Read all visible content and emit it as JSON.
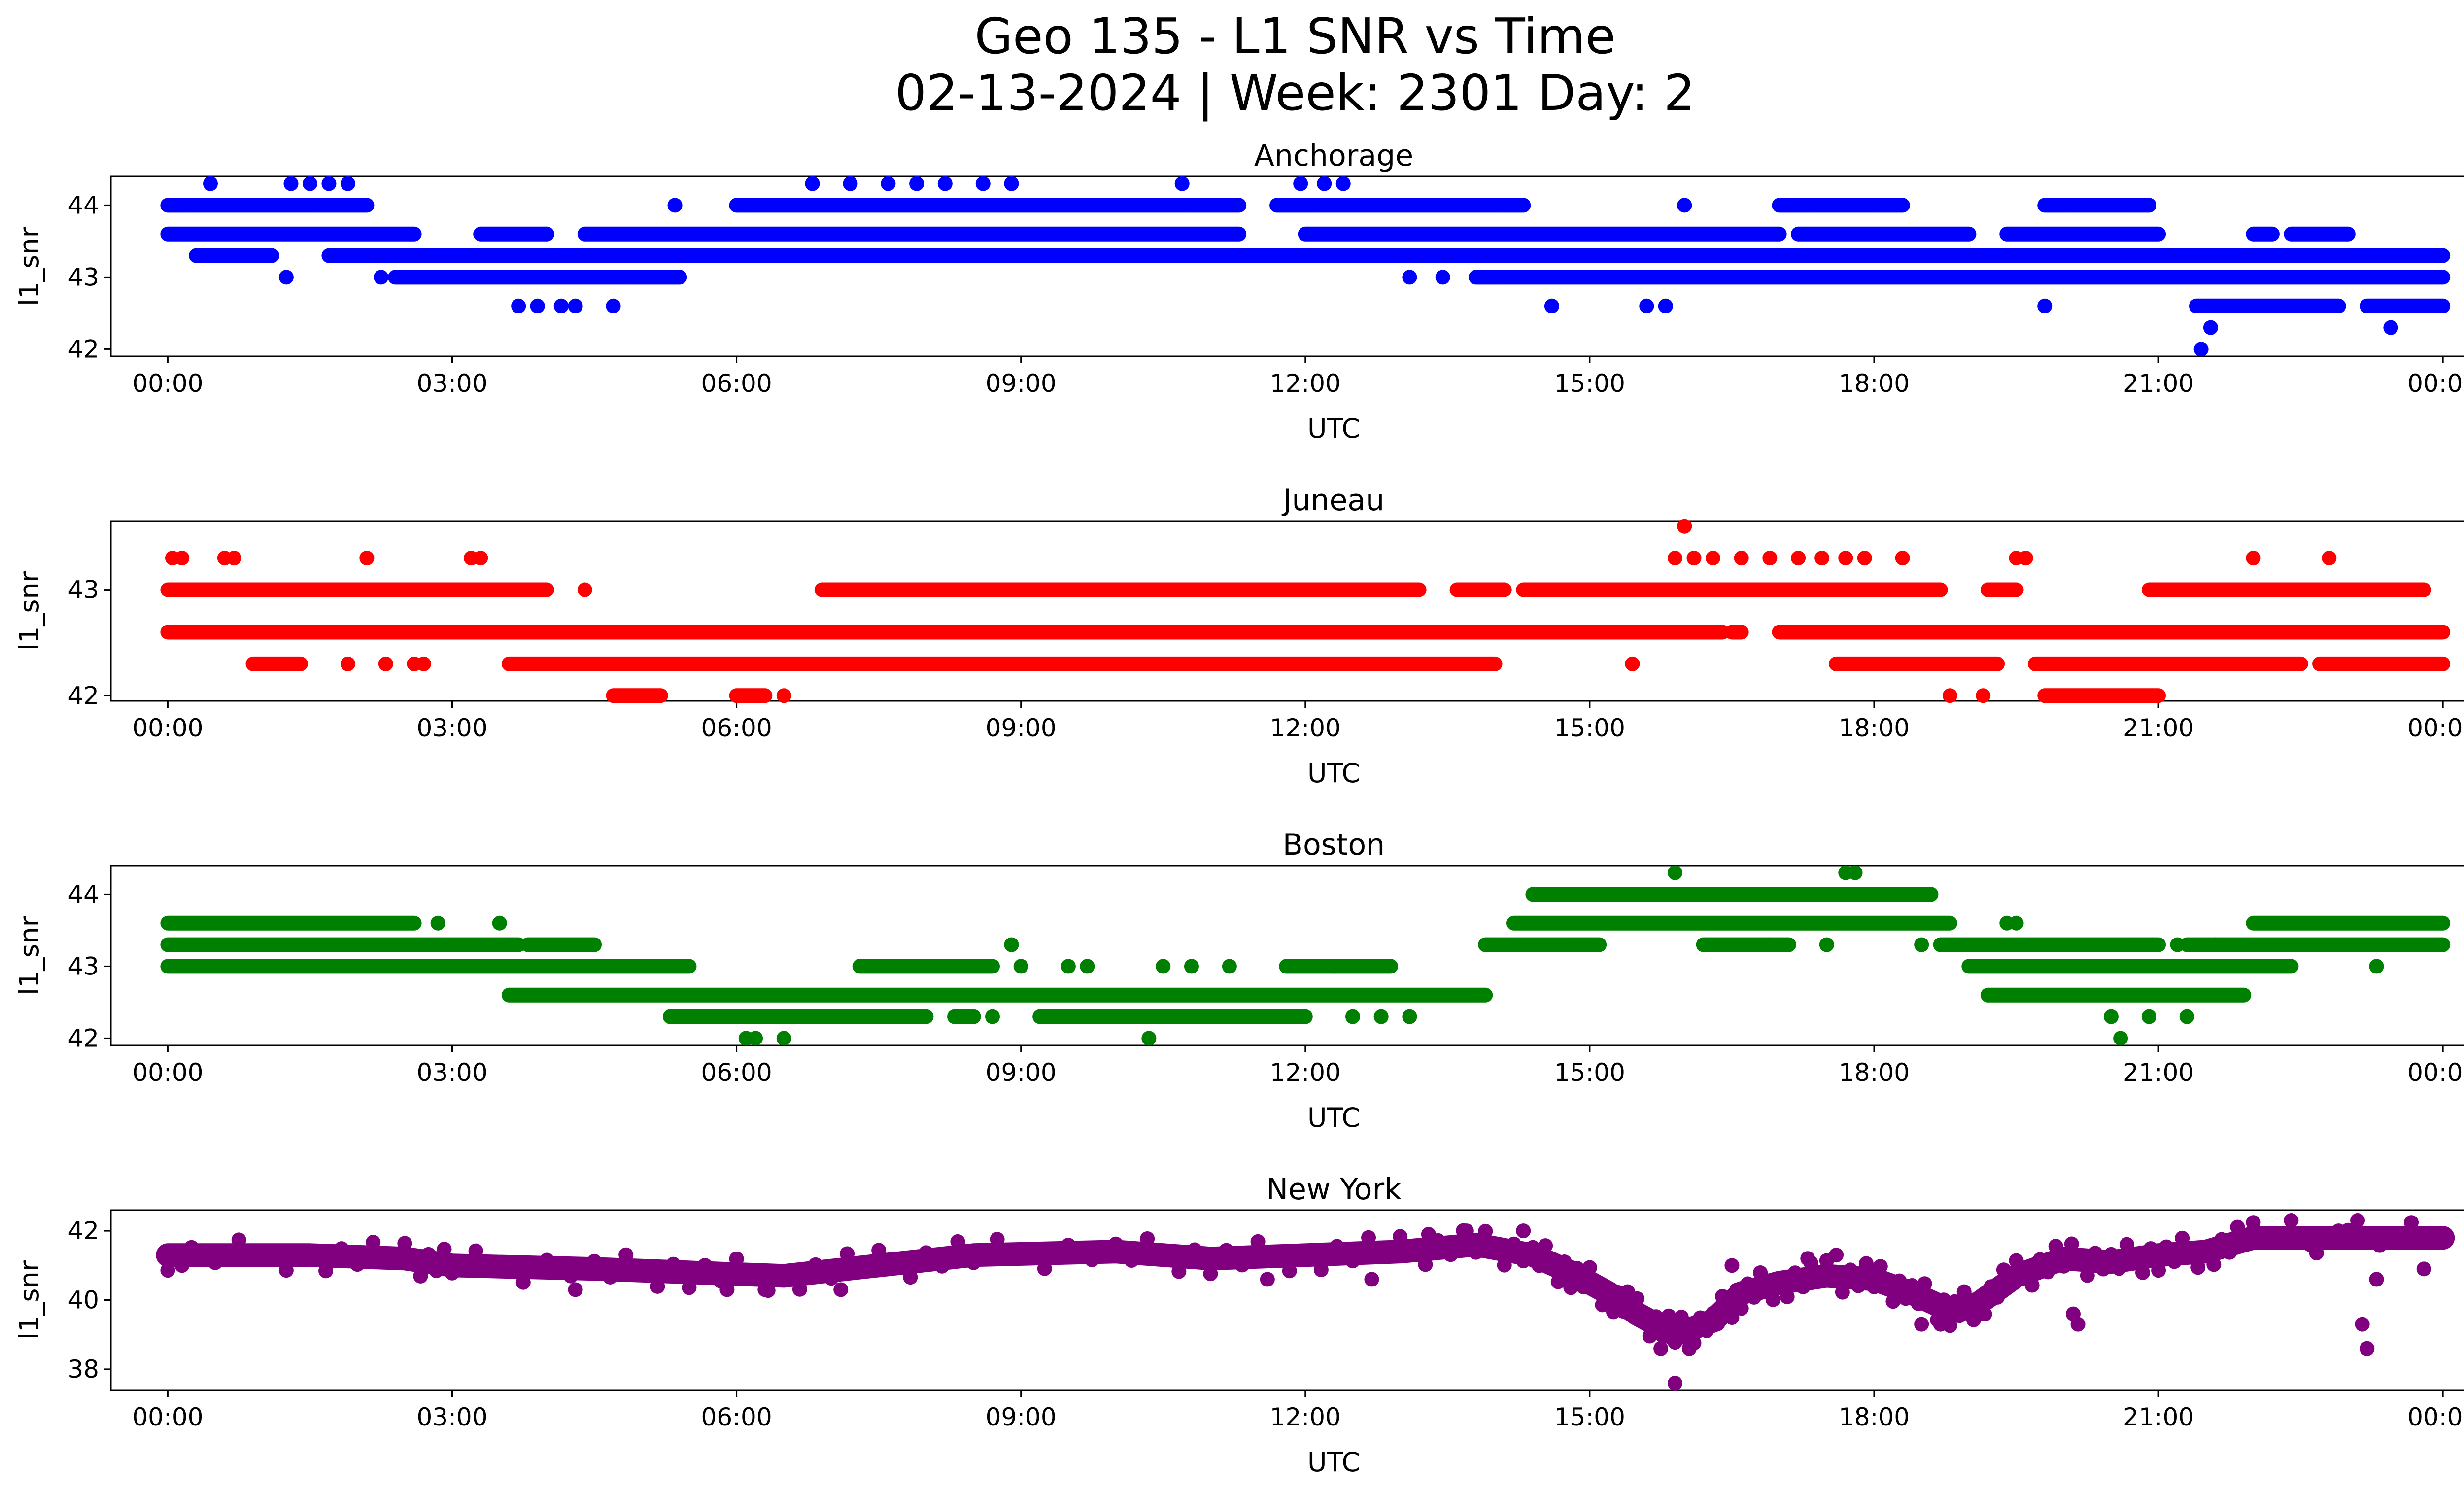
{
  "figure": {
    "title_line1": "Geo 135 - L1 SNR vs Time",
    "title_line2": "02-13-2024 | Week: 2301 Day: 2"
  },
  "chart_data": [
    {
      "type": "scatter",
      "title": "Anchorage",
      "xlabel": "UTC",
      "ylabel": "l1_snr",
      "color": "#0000ff",
      "xlim": [
        -0.6,
        25.2
      ],
      "ylim": [
        41.9,
        44.4
      ],
      "xticks": [
        "00:00",
        "03:00",
        "06:00",
        "09:00",
        "12:00",
        "15:00",
        "18:00",
        "21:00",
        "00:00"
      ],
      "yticks": [
        42,
        43,
        44
      ],
      "bands": [
        {
          "y": 44.0,
          "segments": [
            [
              0,
              2.1
            ],
            [
              5.35,
              5.35
            ],
            [
              6.0,
              11.3
            ],
            [
              11.7,
              14.3
            ],
            [
              16.0,
              16.0
            ],
            [
              17.0,
              18.3
            ],
            [
              19.8,
              20.9
            ]
          ]
        },
        {
          "y": 43.6,
          "segments": [
            [
              0,
              2.6
            ],
            [
              3.3,
              4.0
            ],
            [
              4.4,
              11.3
            ],
            [
              12.0,
              17.0
            ],
            [
              17.2,
              19.0
            ],
            [
              19.4,
              21.0
            ],
            [
              22.0,
              22.2
            ],
            [
              22.4,
              23.0
            ]
          ]
        },
        {
          "y": 43.3,
          "segments": [
            [
              0.3,
              1.1
            ],
            [
              1.7,
              24.0
            ]
          ]
        },
        {
          "y": 43.0,
          "segments": [
            [
              2.4,
              5.4
            ],
            [
              13.8,
              24.0
            ]
          ]
        },
        {
          "y": 42.6,
          "segments": [
            [
              21.4,
              22.9
            ],
            [
              23.2,
              24.0
            ]
          ]
        }
      ],
      "points": [
        {
          "x": 0.45,
          "y": 44.3
        },
        {
          "x": 1.3,
          "y": 44.3
        },
        {
          "x": 1.5,
          "y": 44.3
        },
        {
          "x": 1.7,
          "y": 44.3
        },
        {
          "x": 1.9,
          "y": 44.3
        },
        {
          "x": 6.8,
          "y": 44.3
        },
        {
          "x": 7.2,
          "y": 44.3
        },
        {
          "x": 7.6,
          "y": 44.3
        },
        {
          "x": 7.9,
          "y": 44.3
        },
        {
          "x": 8.2,
          "y": 44.3
        },
        {
          "x": 8.6,
          "y": 44.3
        },
        {
          "x": 8.9,
          "y": 44.3
        },
        {
          "x": 10.7,
          "y": 44.3
        },
        {
          "x": 11.95,
          "y": 44.3
        },
        {
          "x": 12.2,
          "y": 44.3
        },
        {
          "x": 12.4,
          "y": 44.3
        },
        {
          "x": 1.25,
          "y": 43.0
        },
        {
          "x": 2.25,
          "y": 43.0
        },
        {
          "x": 13.1,
          "y": 43.0
        },
        {
          "x": 13.45,
          "y": 43.0
        },
        {
          "x": 3.7,
          "y": 42.6
        },
        {
          "x": 3.9,
          "y": 42.6
        },
        {
          "x": 4.15,
          "y": 42.6
        },
        {
          "x": 4.3,
          "y": 42.6
        },
        {
          "x": 4.7,
          "y": 42.6
        },
        {
          "x": 14.6,
          "y": 42.6
        },
        {
          "x": 15.6,
          "y": 42.6
        },
        {
          "x": 15.8,
          "y": 42.6
        },
        {
          "x": 19.8,
          "y": 42.6
        },
        {
          "x": 21.55,
          "y": 42.3
        },
        {
          "x": 23.45,
          "y": 42.3
        },
        {
          "x": 21.45,
          "y": 42.0
        }
      ]
    },
    {
      "type": "scatter",
      "title": "Juneau",
      "xlabel": "UTC",
      "ylabel": "l1_snr",
      "color": "#ff0000",
      "xlim": [
        -0.6,
        25.2
      ],
      "ylim": [
        41.95,
        43.65
      ],
      "xticks": [
        "00:00",
        "03:00",
        "06:00",
        "09:00",
        "12:00",
        "15:00",
        "18:00",
        "21:00",
        "00:00"
      ],
      "yticks": [
        42,
        43
      ],
      "bands": [
        {
          "y": 43.0,
          "segments": [
            [
              0,
              4.0
            ],
            [
              6.9,
              13.2
            ],
            [
              13.6,
              14.1
            ],
            [
              14.3,
              18.7
            ],
            [
              19.2,
              19.5
            ],
            [
              20.9,
              23.8
            ]
          ]
        },
        {
          "y": 42.6,
          "segments": [
            [
              0,
              16.4
            ],
            [
              16.5,
              16.6
            ],
            [
              17.0,
              24.0
            ]
          ]
        },
        {
          "y": 42.3,
          "segments": [
            [
              0.9,
              1.4
            ],
            [
              3.6,
              14.0
            ],
            [
              17.6,
              19.3
            ],
            [
              19.7,
              22.5
            ],
            [
              22.7,
              24.0
            ]
          ]
        },
        {
          "y": 42.0,
          "segments": [
            [
              4.7,
              5.2
            ],
            [
              6.0,
              6.3
            ],
            [
              19.8,
              21.0
            ]
          ]
        }
      ],
      "points": [
        {
          "x": 0.05,
          "y": 43.3
        },
        {
          "x": 0.15,
          "y": 43.3
        },
        {
          "x": 0.6,
          "y": 43.3
        },
        {
          "x": 0.7,
          "y": 43.3
        },
        {
          "x": 2.1,
          "y": 43.3
        },
        {
          "x": 3.2,
          "y": 43.3
        },
        {
          "x": 3.3,
          "y": 43.3
        },
        {
          "x": 19.5,
          "y": 43.3
        },
        {
          "x": 19.6,
          "y": 43.3
        },
        {
          "x": 22.0,
          "y": 43.3
        },
        {
          "x": 22.8,
          "y": 43.3
        },
        {
          "x": 16.0,
          "y": 43.6
        },
        {
          "x": 16.6,
          "y": 43.3
        },
        {
          "x": 16.9,
          "y": 43.3
        },
        {
          "x": 17.2,
          "y": 43.3
        },
        {
          "x": 17.45,
          "y": 43.3
        },
        {
          "x": 17.7,
          "y": 43.3
        },
        {
          "x": 17.9,
          "y": 43.3
        },
        {
          "x": 18.3,
          "y": 43.3
        },
        {
          "x": 15.9,
          "y": 43.3
        },
        {
          "x": 16.1,
          "y": 43.3
        },
        {
          "x": 16.3,
          "y": 43.3
        },
        {
          "x": 4.4,
          "y": 43.0
        },
        {
          "x": 18.8,
          "y": 42.0
        },
        {
          "x": 19.15,
          "y": 42.0
        },
        {
          "x": 6.5,
          "y": 42.0
        },
        {
          "x": 1.9,
          "y": 42.3
        },
        {
          "x": 2.3,
          "y": 42.3
        },
        {
          "x": 2.6,
          "y": 42.3
        },
        {
          "x": 2.7,
          "y": 42.3
        },
        {
          "x": 15.45,
          "y": 42.3
        }
      ]
    },
    {
      "type": "scatter",
      "title": "Boston",
      "xlabel": "UTC",
      "ylabel": "l1_snr",
      "color": "#008000",
      "xlim": [
        -0.6,
        25.2
      ],
      "ylim": [
        41.9,
        44.4
      ],
      "xticks": [
        "00:00",
        "03:00",
        "06:00",
        "09:00",
        "12:00",
        "15:00",
        "18:00",
        "21:00",
        "00:00"
      ],
      "yticks": [
        42,
        43,
        44
      ],
      "bands": [
        {
          "y": 44.0,
          "segments": [
            [
              14.4,
              18.6
            ]
          ]
        },
        {
          "y": 43.6,
          "segments": [
            [
              0,
              2.6
            ],
            [
              14.2,
              18.8
            ],
            [
              22.0,
              24.0
            ]
          ]
        },
        {
          "y": 43.3,
          "segments": [
            [
              0,
              3.7
            ],
            [
              3.8,
              4.5
            ],
            [
              13.9,
              15.1
            ],
            [
              16.2,
              17.1
            ],
            [
              18.7,
              21.0
            ],
            [
              21.3,
              24.0
            ]
          ]
        },
        {
          "y": 43.0,
          "segments": [
            [
              0,
              5.5
            ],
            [
              7.3,
              8.7
            ],
            [
              11.8,
              12.3
            ],
            [
              12.3,
              12.9
            ],
            [
              19.0,
              22.4
            ]
          ]
        },
        {
          "y": 42.6,
          "segments": [
            [
              3.6,
              13.9
            ],
            [
              19.2,
              21.9
            ]
          ]
        },
        {
          "y": 42.3,
          "segments": [
            [
              5.3,
              8.0
            ],
            [
              8.3,
              8.5
            ],
            [
              9.2,
              12.0
            ]
          ]
        }
      ],
      "points": [
        {
          "x": 3.5,
          "y": 43.6
        },
        {
          "x": 2.85,
          "y": 43.6
        },
        {
          "x": 15.9,
          "y": 44.3
        },
        {
          "x": 17.7,
          "y": 44.3
        },
        {
          "x": 17.8,
          "y": 44.3
        },
        {
          "x": 19.4,
          "y": 43.6
        },
        {
          "x": 19.5,
          "y": 43.6
        },
        {
          "x": 8.9,
          "y": 43.3
        },
        {
          "x": 16.9,
          "y": 43.3
        },
        {
          "x": 17.5,
          "y": 43.3
        },
        {
          "x": 18.5,
          "y": 43.3
        },
        {
          "x": 9.0,
          "y": 43.0
        },
        {
          "x": 9.5,
          "y": 43.0
        },
        {
          "x": 9.7,
          "y": 43.0
        },
        {
          "x": 10.5,
          "y": 43.0
        },
        {
          "x": 10.8,
          "y": 43.0
        },
        {
          "x": 11.2,
          "y": 43.0
        },
        {
          "x": 23.3,
          "y": 43.0
        },
        {
          "x": 8.7,
          "y": 42.3
        },
        {
          "x": 9.4,
          "y": 42.3
        },
        {
          "x": 12.5,
          "y": 42.3
        },
        {
          "x": 12.8,
          "y": 42.3
        },
        {
          "x": 13.1,
          "y": 42.3
        },
        {
          "x": 20.5,
          "y": 42.3
        },
        {
          "x": 20.9,
          "y": 42.3
        },
        {
          "x": 21.3,
          "y": 42.3
        },
        {
          "x": 6.1,
          "y": 42.0
        },
        {
          "x": 6.2,
          "y": 42.0
        },
        {
          "x": 6.5,
          "y": 42.0
        },
        {
          "x": 10.35,
          "y": 42.0
        },
        {
          "x": 20.6,
          "y": 42.0
        },
        {
          "x": 21.2,
          "y": 43.3
        },
        {
          "x": 21.6,
          "y": 43.3
        }
      ]
    },
    {
      "type": "scatter",
      "title": "New York",
      "xlabel": "UTC",
      "ylabel": "l1_snr",
      "color": "#800080",
      "xlim": [
        -0.6,
        25.2
      ],
      "ylim": [
        37.4,
        42.6
      ],
      "xticks": [
        "00:00",
        "03:00",
        "06:00",
        "09:00",
        "12:00",
        "15:00",
        "18:00",
        "21:00",
        "00:00"
      ],
      "yticks": [
        38,
        40,
        42
      ],
      "trend": [
        {
          "x": 0.0,
          "y": 41.3
        },
        {
          "x": 1.5,
          "y": 41.3
        },
        {
          "x": 2.5,
          "y": 41.2
        },
        {
          "x": 3.0,
          "y": 41.0
        },
        {
          "x": 4.5,
          "y": 40.9
        },
        {
          "x": 5.5,
          "y": 40.8
        },
        {
          "x": 6.5,
          "y": 40.7
        },
        {
          "x": 7.5,
          "y": 41.0
        },
        {
          "x": 8.5,
          "y": 41.3
        },
        {
          "x": 10.0,
          "y": 41.4
        },
        {
          "x": 11.0,
          "y": 41.2
        },
        {
          "x": 12.0,
          "y": 41.3
        },
        {
          "x": 13.0,
          "y": 41.4
        },
        {
          "x": 13.8,
          "y": 41.6
        },
        {
          "x": 14.4,
          "y": 41.3
        },
        {
          "x": 14.8,
          "y": 40.8
        },
        {
          "x": 15.2,
          "y": 40.2
        },
        {
          "x": 15.5,
          "y": 39.6
        },
        {
          "x": 15.9,
          "y": 39.0
        },
        {
          "x": 16.3,
          "y": 39.4
        },
        {
          "x": 16.6,
          "y": 40.2
        },
        {
          "x": 17.0,
          "y": 40.5
        },
        {
          "x": 17.5,
          "y": 40.7
        },
        {
          "x": 18.0,
          "y": 40.6
        },
        {
          "x": 18.4,
          "y": 40.2
        },
        {
          "x": 18.8,
          "y": 39.7
        },
        {
          "x": 19.1,
          "y": 39.9
        },
        {
          "x": 19.5,
          "y": 40.7
        },
        {
          "x": 20.0,
          "y": 41.2
        },
        {
          "x": 20.5,
          "y": 41.1
        },
        {
          "x": 21.0,
          "y": 41.3
        },
        {
          "x": 21.5,
          "y": 41.4
        },
        {
          "x": 22.0,
          "y": 41.8
        },
        {
          "x": 24.0,
          "y": 41.8
        }
      ],
      "points": [
        {
          "x": 0.15,
          "y": 41.0
        },
        {
          "x": 4.3,
          "y": 40.3
        },
        {
          "x": 5.9,
          "y": 40.3
        },
        {
          "x": 6.3,
          "y": 40.3
        },
        {
          "x": 7.1,
          "y": 40.3
        },
        {
          "x": 11.6,
          "y": 40.6
        },
        {
          "x": 12.7,
          "y": 40.6
        },
        {
          "x": 13.3,
          "y": 41.9
        },
        {
          "x": 13.7,
          "y": 42.0
        },
        {
          "x": 14.3,
          "y": 42.0
        },
        {
          "x": 15.9,
          "y": 37.6
        },
        {
          "x": 15.75,
          "y": 38.6
        },
        {
          "x": 16.05,
          "y": 38.6
        },
        {
          "x": 16.5,
          "y": 41.0
        },
        {
          "x": 17.3,
          "y": 41.2
        },
        {
          "x": 17.6,
          "y": 41.3
        },
        {
          "x": 18.5,
          "y": 39.3
        },
        {
          "x": 18.7,
          "y": 39.3
        },
        {
          "x": 19.0,
          "y": 39.6
        },
        {
          "x": 20.1,
          "y": 39.6
        },
        {
          "x": 20.15,
          "y": 39.3
        },
        {
          "x": 22.4,
          "y": 42.3
        },
        {
          "x": 22.9,
          "y": 42.0
        },
        {
          "x": 23.1,
          "y": 42.3
        },
        {
          "x": 23.15,
          "y": 39.3
        },
        {
          "x": 23.2,
          "y": 38.6
        },
        {
          "x": 23.3,
          "y": 40.6
        },
        {
          "x": 23.8,
          "y": 40.9
        },
        {
          "x": 22.6,
          "y": 41.6
        },
        {
          "x": 21.8,
          "y": 41.6
        }
      ]
    }
  ]
}
